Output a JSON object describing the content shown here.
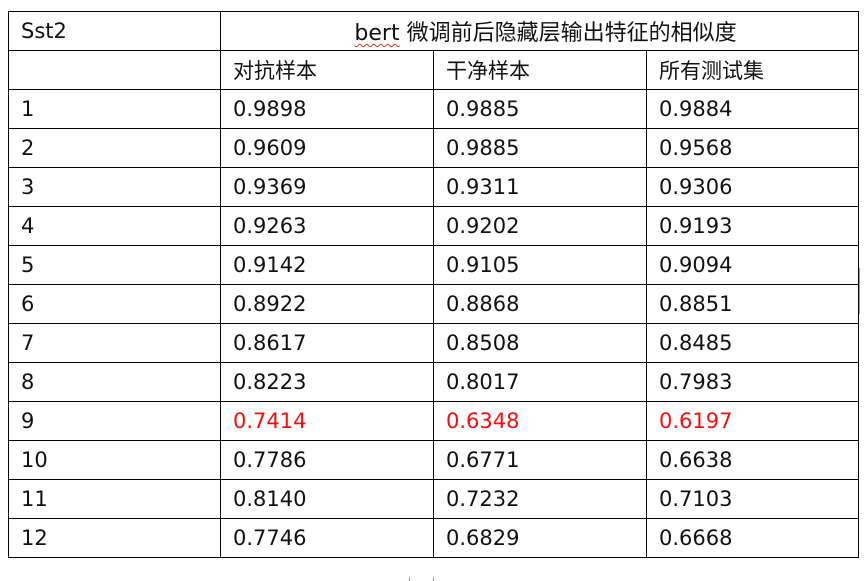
{
  "table": {
    "corner_label": "Sst2",
    "title_prefix": "bert",
    "title_suffix": " 微调前后隐藏层输出特征的相似度",
    "column_headers": [
      "对抗样本",
      "干净样本",
      "所有测试集"
    ],
    "rows": [
      {
        "layer": "1",
        "adversarial": "0.9898",
        "clean": "0.9885",
        "all_test": "0.9884"
      },
      {
        "layer": "2",
        "adversarial": "0.9609",
        "clean": "0.9885",
        "all_test": "0.9568"
      },
      {
        "layer": "3",
        "adversarial": "0.9369",
        "clean": "0.9311",
        "all_test": "0.9306"
      },
      {
        "layer": "4",
        "adversarial": "0.9263",
        "clean": "0.9202",
        "all_test": "0.9193"
      },
      {
        "layer": "5",
        "adversarial": "0.9142",
        "clean": "0.9105",
        "all_test": "0.9094"
      },
      {
        "layer": "6",
        "adversarial": "0.8922",
        "clean": "0.8868",
        "all_test": "0.8851"
      },
      {
        "layer": "7",
        "adversarial": "0.8617",
        "clean": "0.8508",
        "all_test": "0.8485"
      },
      {
        "layer": "8",
        "adversarial": "0.8223",
        "clean": "0.8017",
        "all_test": "0.7983"
      },
      {
        "layer": "9",
        "adversarial": "0.7414",
        "clean": "0.6348",
        "all_test": "0.6197"
      },
      {
        "layer": "10",
        "adversarial": "0.7786",
        "clean": "0.6771",
        "all_test": "0.6638"
      },
      {
        "layer": "11",
        "adversarial": "0.8140",
        "clean": "0.7232",
        "all_test": "0.7103"
      },
      {
        "layer": "12",
        "adversarial": "0.7746",
        "clean": "0.6829",
        "all_test": "0.6668"
      }
    ],
    "highlight_row_layer": "9",
    "highlight_color": "#ee1111"
  }
}
